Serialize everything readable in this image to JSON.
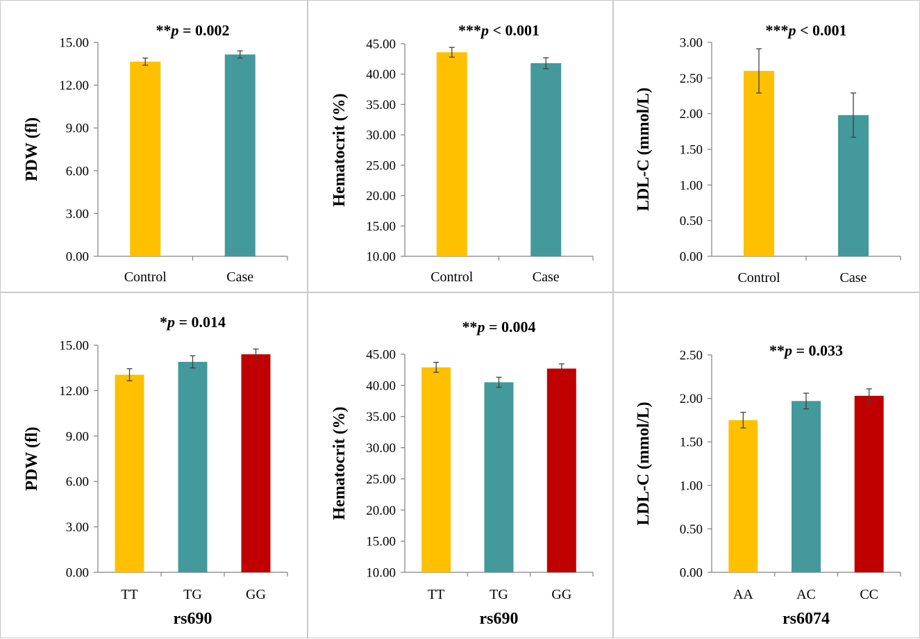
{
  "colors": {
    "gold": "#FFC000",
    "teal": "#43999B",
    "red": "#C00000",
    "axis": "#808080",
    "error": "#404040"
  },
  "chart_data": [
    {
      "type": "bar",
      "title": {
        "stars": "**",
        "p": "p",
        "rest": " = 0.002"
      },
      "ylabel": "PDW (fl)",
      "xlabel": "",
      "categories": [
        "Control",
        "Case"
      ],
      "values": [
        13.65,
        14.15
      ],
      "errors": [
        0.25,
        0.25
      ],
      "ylim": [
        0,
        15
      ],
      "yticks": [
        "0.00",
        "3.00",
        "6.00",
        "9.00",
        "12.00",
        "15.00"
      ],
      "bar_colors": [
        "gold",
        "teal"
      ]
    },
    {
      "type": "bar",
      "title": {
        "stars": "***",
        "p": "p",
        "rest": " < 0.001"
      },
      "ylabel": "Hematocrit (%)",
      "xlabel": "",
      "categories": [
        "Control",
        "Case"
      ],
      "values": [
        43.6,
        41.8
      ],
      "errors": [
        0.8,
        0.9
      ],
      "ylim": [
        10,
        45
      ],
      "yticks": [
        "10.00",
        "15.00",
        "20.00",
        "25.00",
        "30.00",
        "35.00",
        "40.00",
        "45.00"
      ],
      "bar_colors": [
        "gold",
        "teal"
      ]
    },
    {
      "type": "bar",
      "title": {
        "stars": "***",
        "p": "p",
        "rest": " < 0.001"
      },
      "ylabel": "LDL-C (mmol/L)",
      "xlabel": "",
      "categories": [
        "Control",
        "Case"
      ],
      "values": [
        2.6,
        1.98
      ],
      "errors": [
        0.31,
        0.31
      ],
      "ylim": [
        0,
        3
      ],
      "yticks": [
        "0.00",
        "0.50",
        "1.00",
        "1.50",
        "2.00",
        "2.50",
        "3.00"
      ],
      "bar_colors": [
        "gold",
        "teal"
      ]
    },
    {
      "type": "bar",
      "title": {
        "stars": "*",
        "p": "p",
        "rest": " = 0.014"
      },
      "ylabel": "PDW (fl)",
      "xlabel": "rs690",
      "categories": [
        "TT",
        "TG",
        "GG"
      ],
      "values": [
        13.05,
        13.9,
        14.4
      ],
      "errors": [
        0.4,
        0.4,
        0.35
      ],
      "ylim": [
        0,
        15
      ],
      "yticks": [
        "0.00",
        "3.00",
        "6.00",
        "9.00",
        "12.00",
        "15.00"
      ],
      "bar_colors": [
        "gold",
        "teal",
        "red"
      ]
    },
    {
      "type": "bar",
      "title": {
        "stars": "**",
        "p": "p",
        "rest": " = 0.004"
      },
      "ylabel": "Hematocrit (%)",
      "xlabel": "rs690",
      "categories": [
        "TT",
        "TG",
        "GG"
      ],
      "values": [
        42.9,
        40.5,
        42.7
      ],
      "errors": [
        0.8,
        0.8,
        0.75
      ],
      "ylim": [
        10,
        45
      ],
      "yticks": [
        "10.00",
        "15.00",
        "20.00",
        "25.00",
        "30.00",
        "35.00",
        "40.00",
        "45.00"
      ],
      "bar_colors": [
        "gold",
        "teal",
        "red"
      ]
    },
    {
      "type": "bar",
      "title": {
        "stars": "**",
        "p": "p",
        "rest": " = 0.033"
      },
      "ylabel": "LDL-C (mmol/L)",
      "xlabel": "rs6074",
      "categories": [
        "AA",
        "AC",
        "CC"
      ],
      "values": [
        1.75,
        1.97,
        2.03
      ],
      "errors": [
        0.09,
        0.09,
        0.08
      ],
      "ylim": [
        0,
        2.5
      ],
      "yticks": [
        "0.00",
        "0.50",
        "1.00",
        "1.50",
        "2.00",
        "2.50"
      ],
      "bar_colors": [
        "gold",
        "teal",
        "red"
      ]
    }
  ]
}
